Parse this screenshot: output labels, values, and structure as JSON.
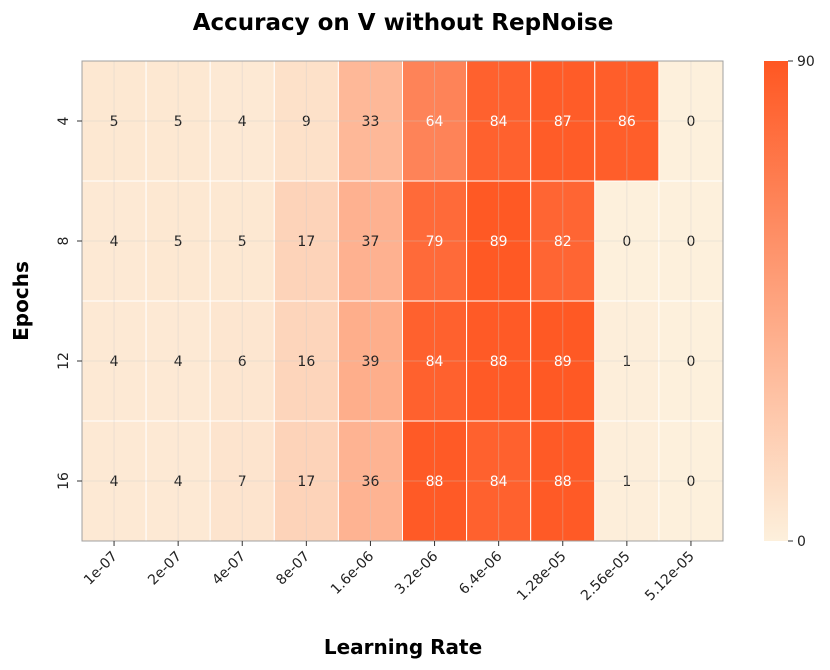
{
  "chart_data": {
    "type": "heatmap",
    "title": "Accuracy on V without RepNoise",
    "xlabel": "Learning Rate",
    "ylabel": "Epochs",
    "x": [
      "1e-07",
      "2e-07",
      "4e-07",
      "8e-07",
      "1.6e-06",
      "3.2e-06",
      "6.4e-06",
      "1.28e-05",
      "2.56e-05",
      "5.12e-05"
    ],
    "y": [
      "4",
      "8",
      "12",
      "16"
    ],
    "values": [
      [
        5,
        5,
        4,
        9,
        33,
        64,
        84,
        87,
        86,
        0
      ],
      [
        4,
        5,
        5,
        17,
        37,
        79,
        89,
        82,
        0,
        0
      ],
      [
        4,
        4,
        6,
        16,
        39,
        84,
        88,
        89,
        1,
        0
      ],
      [
        4,
        4,
        7,
        17,
        36,
        88,
        84,
        88,
        1,
        0
      ]
    ],
    "colorbar": {
      "min": 0,
      "max": 90,
      "tick_labels": [
        "0",
        "90"
      ]
    },
    "colors": {
      "low": "#fdf0dc",
      "high": "#ff5722"
    },
    "grid": true
  }
}
